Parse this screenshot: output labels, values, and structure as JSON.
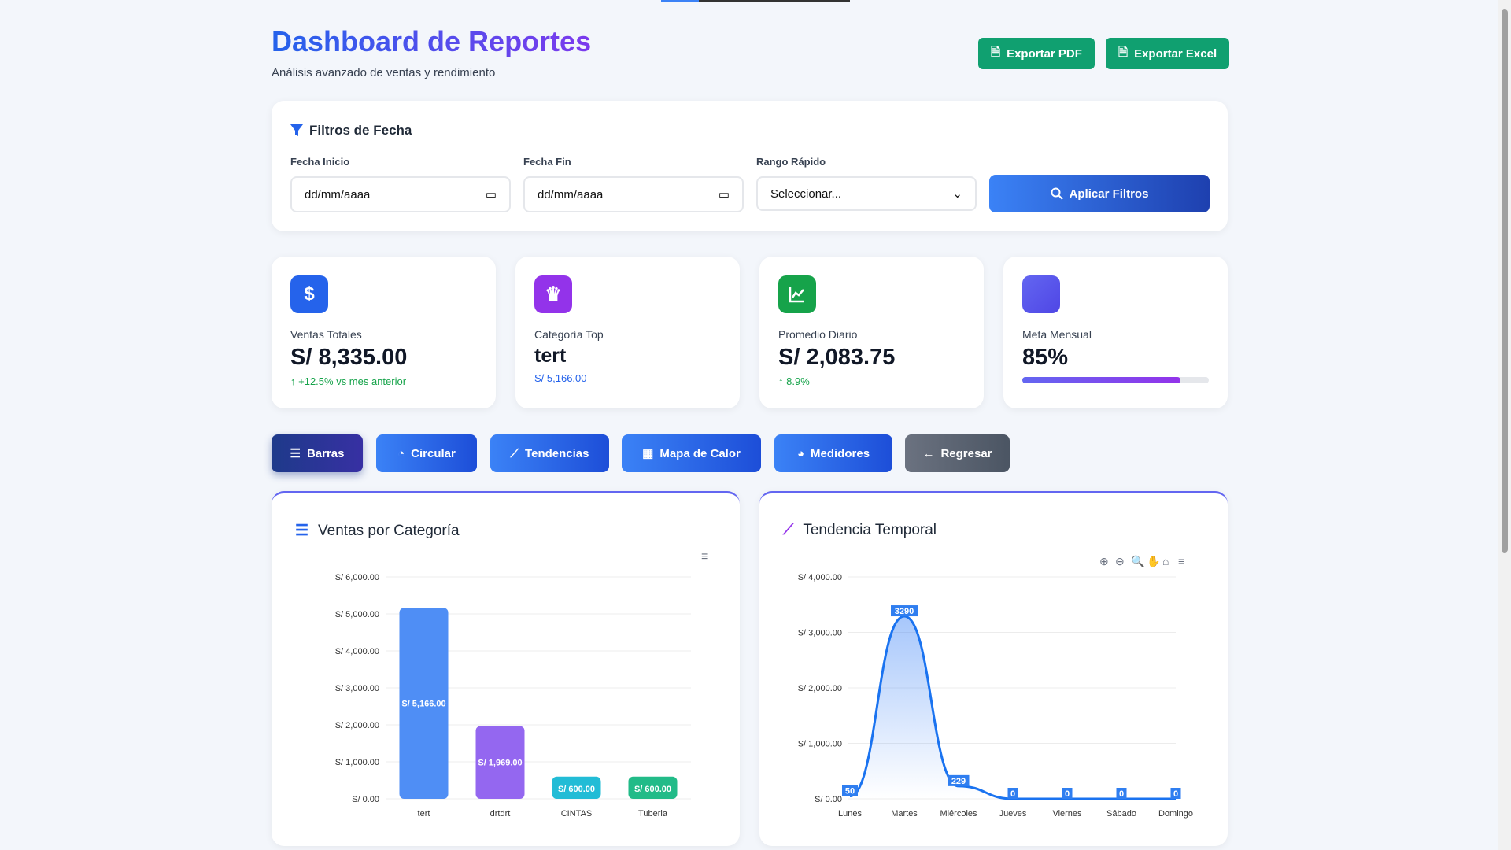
{
  "header": {
    "title": "Dashboard de Reportes",
    "subtitle": "Análisis avanzado de ventas y rendimiento",
    "export_pdf": "Exportar PDF",
    "export_excel": "Exportar Excel"
  },
  "filters": {
    "title": "Filtros de Fecha",
    "start_label": "Fecha Inicio",
    "start_value": "dd/mm/aaaa",
    "end_label": "Fecha Fin",
    "end_value": "dd/mm/aaaa",
    "range_label": "Rango Rápido",
    "range_value": "Seleccionar...",
    "apply": "Aplicar Filtros"
  },
  "stats": [
    {
      "label": "Ventas Totales",
      "value": "S/ 8,335.00",
      "note": "+12.5% vs mes anterior",
      "color": "#2563eb"
    },
    {
      "label": "Categoría Top",
      "value": "tert",
      "note": "S/ 5,166.00",
      "color": "#9333ea"
    },
    {
      "label": "Promedio Diario",
      "value": "S/ 2,083.75",
      "note": "8.9%",
      "color": "#16a34a"
    },
    {
      "label": "Meta Mensual",
      "value": "85%",
      "progress": 85,
      "color": "#4f46e5"
    }
  ],
  "tabs": [
    "Barras",
    "Circular",
    "Tendencias",
    "Mapa de Calor",
    "Medidores",
    "Regresar"
  ],
  "chart_data": [
    {
      "type": "bar",
      "title": "Ventas por Categoría",
      "categories": [
        "tert",
        "drtdrt",
        "CINTAS",
        "Tuberia"
      ],
      "values": [
        5166,
        1969,
        600,
        600
      ],
      "value_labels": [
        "S/ 5,166.00",
        "S/ 1,969.00",
        "S/ 600.00",
        "S/ 600.00"
      ],
      "colors": [
        "#4f8ef5",
        "#9467f0",
        "#22bcd6",
        "#22bb88"
      ],
      "ylim": [
        0,
        6000
      ],
      "yticks": [
        "S/ 0.00",
        "S/ 1,000.00",
        "S/ 2,000.00",
        "S/ 3,000.00",
        "S/ 4,000.00",
        "S/ 5,000.00",
        "S/ 6,000.00"
      ]
    },
    {
      "type": "area",
      "title": "Tendencia Temporal",
      "categories": [
        "Lunes",
        "Martes",
        "Miércoles",
        "Jueves",
        "Viernes",
        "Sábado",
        "Domingo"
      ],
      "values": [
        50,
        3290,
        229,
        0,
        0,
        0,
        0
      ],
      "ylim": [
        0,
        4000
      ],
      "yticks": [
        "S/ 0.00",
        "S/ 1,000.00",
        "S/ 2,000.00",
        "S/ 3,000.00",
        "S/ 4,000.00"
      ]
    }
  ]
}
